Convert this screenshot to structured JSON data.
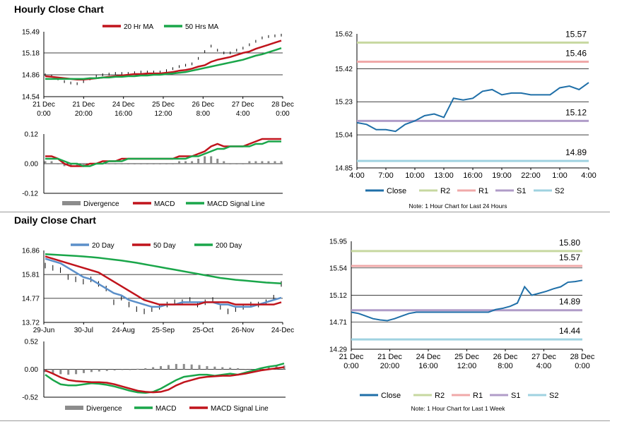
{
  "sections": {
    "hourly_title": "Hourly Close Chart",
    "daily_title": "Daily Close Chart"
  },
  "colors": {
    "red": "#c0141c",
    "green": "#1aa64a",
    "blue": "#5b8fc9",
    "close": "#1f6fa8",
    "r2": "#c7d8a0",
    "r1": "#f0a9a9",
    "s1": "#b09cc8",
    "s2": "#9fd2e0",
    "divergence": "#8c8c8c"
  },
  "chart_data": [
    {
      "id": "hourly-price",
      "type": "line",
      "legend": [
        "20 Hr MA",
        "50 Hrs MA"
      ],
      "y_ticks": [
        "15.49",
        "15.18",
        "14.86",
        "14.54"
      ],
      "ylim": [
        14.54,
        15.49
      ],
      "x_ticks": [
        [
          "21 Dec",
          "0:00"
        ],
        [
          "21 Dec",
          "20:00"
        ],
        [
          "24 Dec",
          "16:00"
        ],
        [
          "25 Dec",
          "12:00"
        ],
        [
          "26 Dec",
          "8:00"
        ],
        [
          "27 Dec",
          "4:00"
        ],
        [
          "28 Dec",
          "0:00"
        ]
      ],
      "close": [
        14.86,
        14.84,
        14.8,
        14.76,
        14.74,
        14.73,
        14.76,
        14.8,
        14.84,
        14.86,
        14.87,
        14.88,
        14.88,
        14.88,
        14.89,
        14.9,
        14.9,
        14.9,
        14.9,
        14.92,
        14.95,
        14.98,
        15.0,
        15.02,
        15.1,
        15.2,
        15.28,
        15.22,
        15.18,
        15.18,
        15.22,
        15.25,
        15.3,
        15.35,
        15.4,
        15.42,
        15.43,
        15.44
      ],
      "series": [
        {
          "name": "20 Hr MA",
          "color": "red",
          "values": [
            14.84,
            14.83,
            14.82,
            14.81,
            14.8,
            14.79,
            14.79,
            14.8,
            14.81,
            14.82,
            14.83,
            14.84,
            14.85,
            14.86,
            14.87,
            14.87,
            14.88,
            14.88,
            14.88,
            14.89,
            14.9,
            14.92,
            14.93,
            14.95,
            14.98,
            15.0,
            15.05,
            15.08,
            15.1,
            15.12,
            15.15,
            15.18,
            15.2,
            15.24,
            15.27,
            15.3,
            15.33,
            15.36
          ]
        },
        {
          "name": "50 Hrs MA",
          "color": "green",
          "values": [
            14.8,
            14.8,
            14.8,
            14.8,
            14.8,
            14.8,
            14.8,
            14.81,
            14.81,
            14.82,
            14.82,
            14.83,
            14.83,
            14.84,
            14.84,
            14.85,
            14.85,
            14.86,
            14.86,
            14.87,
            14.88,
            14.89,
            14.9,
            14.92,
            14.94,
            14.96,
            14.98,
            15.0,
            15.02,
            15.04,
            15.06,
            15.08,
            15.11,
            15.14,
            15.16,
            15.19,
            15.22,
            15.25
          ]
        }
      ]
    },
    {
      "id": "hourly-macd",
      "type": "line",
      "legend": [
        "Divergence",
        "MACD",
        "MACD Signal Line"
      ],
      "y_ticks": [
        "0.12",
        "0.00",
        "-0.12"
      ],
      "ylim": [
        -0.12,
        0.12
      ],
      "divergence": [
        0.01,
        0.01,
        0.0,
        -0.01,
        -0.01,
        -0.01,
        -0.01,
        0.0,
        0.0,
        0.0,
        0.0,
        0.0,
        0.0,
        0.0,
        0.0,
        0.0,
        0.0,
        0.0,
        0.0,
        0.0,
        0.0,
        0.01,
        0.01,
        0.01,
        0.02,
        0.03,
        0.03,
        0.02,
        0.01,
        0.0,
        0.0,
        0.0,
        0.01,
        0.01,
        0.01,
        0.01,
        0.01,
        0.01
      ],
      "series": [
        {
          "name": "MACD",
          "color": "red",
          "values": [
            0.03,
            0.03,
            0.02,
            0.0,
            -0.01,
            -0.01,
            -0.01,
            0.0,
            0.0,
            0.01,
            0.01,
            0.01,
            0.02,
            0.02,
            0.02,
            0.02,
            0.02,
            0.02,
            0.02,
            0.02,
            0.02,
            0.03,
            0.03,
            0.03,
            0.04,
            0.05,
            0.07,
            0.08,
            0.07,
            0.07,
            0.07,
            0.07,
            0.08,
            0.09,
            0.1,
            0.1,
            0.1,
            0.1
          ]
        },
        {
          "name": "MACD Signal Line",
          "color": "green",
          "values": [
            0.02,
            0.02,
            0.02,
            0.01,
            0.0,
            0.0,
            -0.01,
            -0.01,
            0.0,
            0.0,
            0.01,
            0.01,
            0.01,
            0.02,
            0.02,
            0.02,
            0.02,
            0.02,
            0.02,
            0.02,
            0.02,
            0.02,
            0.02,
            0.03,
            0.03,
            0.04,
            0.05,
            0.06,
            0.06,
            0.07,
            0.07,
            0.07,
            0.07,
            0.08,
            0.08,
            0.09,
            0.09,
            0.09
          ]
        }
      ]
    },
    {
      "id": "hourly-levels",
      "type": "line",
      "y_ticks": [
        "15.62",
        "15.42",
        "15.23",
        "15.04",
        "14.85"
      ],
      "ylim": [
        14.85,
        15.62
      ],
      "x_ticks": [
        "4:00",
        "7:00",
        "10:00",
        "13:00",
        "16:00",
        "19:00",
        "22:00",
        "1:00",
        "4:00"
      ],
      "levels": [
        {
          "name": "R2",
          "value": 15.57,
          "label": "15.57",
          "color": "r2"
        },
        {
          "name": "R1",
          "value": 15.46,
          "label": "15.46",
          "color": "r1"
        },
        {
          "name": "S1",
          "value": 15.12,
          "label": "15.12",
          "color": "s1"
        },
        {
          "name": "S2",
          "value": 14.89,
          "label": "14.89",
          "color": "s2"
        }
      ],
      "close": [
        15.11,
        15.1,
        15.07,
        15.07,
        15.06,
        15.1,
        15.12,
        15.15,
        15.16,
        15.14,
        15.25,
        15.24,
        15.25,
        15.29,
        15.3,
        15.27,
        15.28,
        15.28,
        15.27,
        15.27,
        15.27,
        15.31,
        15.32,
        15.3,
        15.34
      ],
      "legend": [
        "Close",
        "R2",
        "R1",
        "S1",
        "S2"
      ],
      "note": "Note: 1 Hour Chart for Last 24 Hours"
    },
    {
      "id": "daily-price",
      "type": "line",
      "legend": [
        "20 Day",
        "50 Day",
        "200 Day"
      ],
      "y_ticks": [
        "16.86",
        "15.81",
        "14.77",
        "13.72"
      ],
      "ylim": [
        13.72,
        16.86
      ],
      "x_ticks": [
        "29-Jun",
        "30-Jul",
        "24-Aug",
        "25-Sep",
        "25-Oct",
        "26-Nov",
        "24-Dec"
      ],
      "close": [
        16.2,
        16.1,
        16.0,
        15.7,
        15.6,
        15.5,
        15.6,
        15.4,
        15.2,
        14.6,
        14.8,
        14.5,
        14.3,
        14.2,
        14.3,
        14.4,
        14.5,
        14.6,
        14.6,
        14.7,
        14.5,
        14.6,
        14.7,
        14.4,
        14.2,
        14.3,
        14.4,
        14.5,
        14.5,
        14.6,
        14.8,
        15.4
      ],
      "series": [
        {
          "name": "20 Day",
          "color": "blue",
          "values": [
            16.5,
            16.4,
            16.3,
            16.1,
            15.9,
            15.7,
            15.6,
            15.4,
            15.2,
            15.0,
            14.9,
            14.7,
            14.6,
            14.5,
            14.4,
            14.4,
            14.5,
            14.5,
            14.6,
            14.6,
            14.6,
            14.6,
            14.6,
            14.5,
            14.5,
            14.4,
            14.4,
            14.4,
            14.5,
            14.6,
            14.7,
            14.8
          ]
        },
        {
          "name": "50 Day",
          "color": "red",
          "values": [
            16.6,
            16.5,
            16.4,
            16.3,
            16.2,
            16.1,
            16.0,
            15.9,
            15.7,
            15.5,
            15.3,
            15.1,
            14.9,
            14.7,
            14.6,
            14.5,
            14.5,
            14.5,
            14.5,
            14.5,
            14.5,
            14.6,
            14.6,
            14.6,
            14.6,
            14.5,
            14.5,
            14.5,
            14.5,
            14.5,
            14.5,
            14.6
          ]
        },
        {
          "name": "200 Day",
          "color": "green",
          "values": [
            16.7,
            16.68,
            16.66,
            16.64,
            16.62,
            16.6,
            16.57,
            16.54,
            16.5,
            16.46,
            16.42,
            16.37,
            16.32,
            16.26,
            16.2,
            16.14,
            16.08,
            16.02,
            15.96,
            15.9,
            15.84,
            15.78,
            15.72,
            15.66,
            15.62,
            15.58,
            15.55,
            15.52,
            15.49,
            15.46,
            15.44,
            15.42
          ]
        }
      ]
    },
    {
      "id": "daily-macd",
      "type": "line",
      "legend": [
        "Divergence",
        "MACD",
        "MACD Signal Line"
      ],
      "y_ticks": [
        "0.52",
        "0.00",
        "-0.52"
      ],
      "ylim": [
        -0.52,
        0.52
      ],
      "divergence": [
        -0.05,
        -0.07,
        -0.09,
        -0.1,
        -0.09,
        -0.07,
        -0.05,
        -0.04,
        -0.03,
        -0.02,
        -0.01,
        0.0,
        0.01,
        0.02,
        0.04,
        0.06,
        0.08,
        0.1,
        0.1,
        0.09,
        0.08,
        0.06,
        0.05,
        0.04,
        0.03,
        0.02,
        0.0,
        0.0,
        0.03,
        0.05,
        0.06,
        0.07
      ],
      "series": [
        {
          "name": "MACD",
          "color": "green",
          "values": [
            -0.1,
            -0.2,
            -0.28,
            -0.3,
            -0.3,
            -0.28,
            -0.26,
            -0.27,
            -0.29,
            -0.32,
            -0.36,
            -0.4,
            -0.43,
            -0.44,
            -0.42,
            -0.36,
            -0.28,
            -0.2,
            -0.14,
            -0.12,
            -0.1,
            -0.1,
            -0.12,
            -0.1,
            -0.08,
            -0.1,
            -0.06,
            -0.02,
            0.02,
            0.05,
            0.07,
            0.11
          ]
        },
        {
          "name": "MACD Signal Line",
          "color": "red",
          "values": [
            -0.02,
            -0.08,
            -0.15,
            -0.2,
            -0.22,
            -0.23,
            -0.24,
            -0.24,
            -0.25,
            -0.28,
            -0.32,
            -0.36,
            -0.4,
            -0.42,
            -0.43,
            -0.42,
            -0.38,
            -0.3,
            -0.24,
            -0.2,
            -0.16,
            -0.14,
            -0.13,
            -0.12,
            -0.12,
            -0.1,
            -0.08,
            -0.05,
            -0.02,
            0.0,
            0.02,
            0.04
          ]
        }
      ]
    },
    {
      "id": "daily-levels",
      "type": "line",
      "y_ticks": [
        "15.95",
        "15.54",
        "15.12",
        "14.71",
        "14.29"
      ],
      "ylim": [
        14.29,
        15.95
      ],
      "x_ticks": [
        [
          "21 Dec",
          "0:00"
        ],
        [
          "21 Dec",
          "20:00"
        ],
        [
          "24 Dec",
          "16:00"
        ],
        [
          "25 Dec",
          "12:00"
        ],
        [
          "26 Dec",
          "8:00"
        ],
        [
          "27 Dec",
          "4:00"
        ],
        [
          "28 Dec",
          "0:00"
        ]
      ],
      "levels": [
        {
          "name": "R2",
          "value": 15.8,
          "label": "15.80",
          "color": "r2"
        },
        {
          "name": "R1",
          "value": 15.57,
          "label": "15.57",
          "color": "r1"
        },
        {
          "name": "S1",
          "value": 14.89,
          "label": "14.89",
          "color": "s1"
        },
        {
          "name": "S2",
          "value": 14.44,
          "label": "14.44",
          "color": "s2"
        }
      ],
      "close": [
        14.86,
        14.84,
        14.8,
        14.76,
        14.74,
        14.73,
        14.76,
        14.8,
        14.84,
        14.86,
        14.86,
        14.86,
        14.86,
        14.86,
        14.86,
        14.86,
        14.86,
        14.86,
        14.86,
        14.86,
        14.9,
        14.92,
        14.95,
        15.0,
        15.25,
        15.12,
        15.15,
        15.18,
        15.22,
        15.25,
        15.32,
        15.33,
        15.35
      ],
      "legend": [
        "Close",
        "R2",
        "R1",
        "S1",
        "S2"
      ],
      "note": "Note: 1 Hour Chart for Last 1 Week"
    }
  ]
}
